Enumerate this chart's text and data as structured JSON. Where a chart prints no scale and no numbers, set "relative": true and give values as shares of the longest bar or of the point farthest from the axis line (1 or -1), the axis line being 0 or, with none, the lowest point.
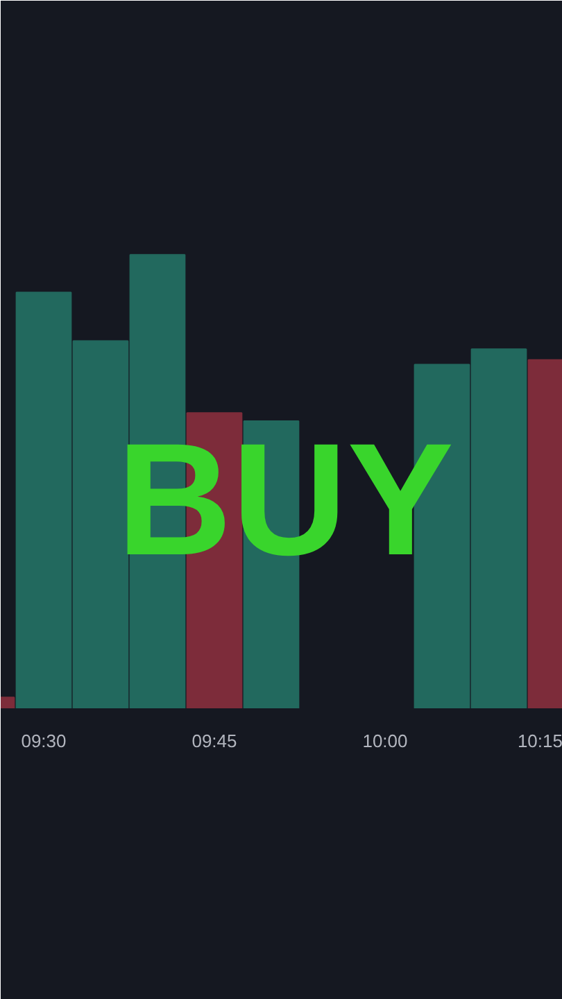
{
  "chart_data": {
    "type": "bar",
    "relative": true,
    "categories": [
      null,
      "09:30",
      null,
      null,
      "09:45",
      null,
      null,
      "10:00",
      null,
      null,
      "10:15"
    ],
    "values": [
      0.024,
      0.917,
      0.81,
      1,
      0.651,
      0.633,
      null,
      null,
      0.758,
      0.792,
      0.768
    ],
    "colors": [
      "#7d2c3a",
      "#22695e",
      "#22695e",
      "#22695e",
      "#7d2c3a",
      "#22695e",
      "#22695e",
      "#22695e",
      "#22695e",
      "#22695e",
      "#7d2c3a"
    ],
    "annotations": [
      "BUY"
    ],
    "grid": false
  }
}
